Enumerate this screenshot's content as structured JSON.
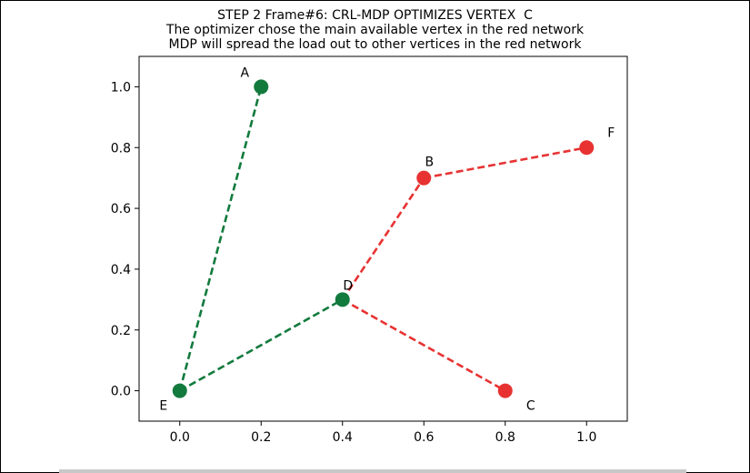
{
  "title": {
    "line1": "STEP 2 Frame#6: CRL-MDP OPTIMIZES VERTEX  C",
    "line2": "The optimizer chose the main available vertex in the red network",
    "line3": "MDP will spread the load out to other vertices in the red network"
  },
  "colors": {
    "green": "#127a3d",
    "red": "#e83232"
  },
  "chart_data": {
    "type": "scatter",
    "title": "STEP 2 Frame#6: CRL-MDP OPTIMIZES VERTEX  C",
    "xlim": [
      -0.1,
      1.1
    ],
    "ylim": [
      -0.1,
      1.1
    ],
    "x_ticks": [
      "0.0",
      "0.2",
      "0.4",
      "0.6",
      "0.8",
      "1.0"
    ],
    "x_tick_values": [
      0.0,
      0.2,
      0.4,
      0.6,
      0.8,
      1.0
    ],
    "y_ticks": [
      "0.0",
      "0.2",
      "0.4",
      "0.6",
      "0.8",
      "1.0"
    ],
    "y_tick_values": [
      0.0,
      0.2,
      0.4,
      0.6,
      0.8,
      1.0
    ],
    "grid": false,
    "nodes": [
      {
        "label": "A",
        "x": 0.2,
        "y": 1.0,
        "color": "green"
      },
      {
        "label": "B",
        "x": 0.6,
        "y": 0.7,
        "color": "red"
      },
      {
        "label": "C",
        "x": 0.8,
        "y": 0.0,
        "color": "red"
      },
      {
        "label": "D",
        "x": 0.4,
        "y": 0.3,
        "color": "green"
      },
      {
        "label": "E",
        "x": 0.0,
        "y": 0.0,
        "color": "green"
      },
      {
        "label": "F",
        "x": 1.0,
        "y": 0.8,
        "color": "red"
      }
    ],
    "edges": [
      {
        "from": "E",
        "to": "A",
        "color": "green",
        "style": "dashed"
      },
      {
        "from": "E",
        "to": "D",
        "color": "green",
        "style": "dashed"
      },
      {
        "from": "D",
        "to": "B",
        "color": "red",
        "style": "dashed"
      },
      {
        "from": "B",
        "to": "F",
        "color": "red",
        "style": "dashed"
      },
      {
        "from": "D",
        "to": "C",
        "color": "red",
        "style": "dashed"
      }
    ]
  }
}
